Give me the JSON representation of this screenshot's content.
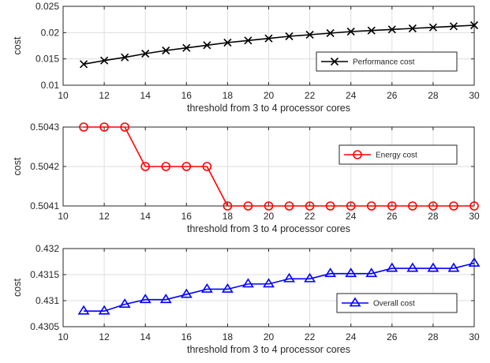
{
  "chart_data": [
    {
      "type": "line",
      "xlabel": "threshold from 3 to 4 processor cores",
      "ylabel": "cost",
      "xlim": [
        10,
        30
      ],
      "ylim": [
        0.01,
        0.025
      ],
      "xticks": [
        "10",
        "12",
        "14",
        "16",
        "18",
        "20",
        "22",
        "24",
        "26",
        "28",
        "30"
      ],
      "yticks": [
        "0.01",
        "0.015",
        "0.02",
        "0.025"
      ],
      "grid": true,
      "legend_position": "right",
      "series": [
        {
          "name": "Performance cost",
          "color": "#000000",
          "marker": "x",
          "x": [
            11,
            12,
            13,
            14,
            15,
            16,
            17,
            18,
            19,
            20,
            21,
            22,
            23,
            24,
            25,
            26,
            27,
            28,
            29,
            30
          ],
          "y": [
            0.014,
            0.0147,
            0.0153,
            0.016,
            0.0166,
            0.0171,
            0.0176,
            0.0181,
            0.0185,
            0.0189,
            0.0193,
            0.0196,
            0.0199,
            0.0202,
            0.0204,
            0.0206,
            0.0208,
            0.021,
            0.0212,
            0.0214
          ]
        }
      ]
    },
    {
      "type": "line",
      "xlabel": "threshold from 3 to 4 processor cores",
      "ylabel": "cost",
      "xlim": [
        10,
        30
      ],
      "ylim": [
        0.5041,
        0.5043
      ],
      "xticks": [
        "10",
        "12",
        "14",
        "16",
        "18",
        "20",
        "22",
        "24",
        "26",
        "28",
        "30"
      ],
      "yticks": [
        "0.5041",
        "0.5042",
        "0.5043"
      ],
      "grid": true,
      "legend_position": "right",
      "series": [
        {
          "name": "Energy cost",
          "color": "#ff0000",
          "marker": "o",
          "x": [
            11,
            12,
            13,
            14,
            15,
            16,
            17,
            18,
            19,
            20,
            21,
            22,
            23,
            24,
            25,
            26,
            27,
            28,
            29,
            30
          ],
          "y": [
            0.5043,
            0.5043,
            0.5043,
            0.5042,
            0.5042,
            0.5042,
            0.5042,
            0.5041,
            0.5041,
            0.5041,
            0.5041,
            0.5041,
            0.5041,
            0.5041,
            0.5041,
            0.5041,
            0.5041,
            0.5041,
            0.5041,
            0.5041
          ]
        }
      ]
    },
    {
      "type": "line",
      "xlabel": "threshold from 3 to 4 processor cores",
      "ylabel": "cost",
      "xlim": [
        10,
        30
      ],
      "ylim": [
        0.4305,
        0.432
      ],
      "xticks": [
        "10",
        "12",
        "14",
        "16",
        "18",
        "20",
        "22",
        "24",
        "26",
        "28",
        "30"
      ],
      "yticks": [
        "0.4305",
        "0.431",
        "0.4315",
        "0.432"
      ],
      "grid": true,
      "legend_position": "right",
      "series": [
        {
          "name": "Overall cost",
          "color": "#0000ff",
          "marker": "triangle",
          "x": [
            11,
            12,
            13,
            14,
            15,
            16,
            17,
            18,
            19,
            20,
            21,
            22,
            23,
            24,
            25,
            26,
            27,
            28,
            29,
            30
          ],
          "y": [
            0.4308,
            0.4308,
            0.43093,
            0.43102,
            0.43102,
            0.43112,
            0.43122,
            0.43122,
            0.43132,
            0.43132,
            0.43142,
            0.43142,
            0.43152,
            0.43152,
            0.43152,
            0.43162,
            0.43162,
            0.43162,
            0.43162,
            0.43172
          ]
        }
      ]
    }
  ]
}
